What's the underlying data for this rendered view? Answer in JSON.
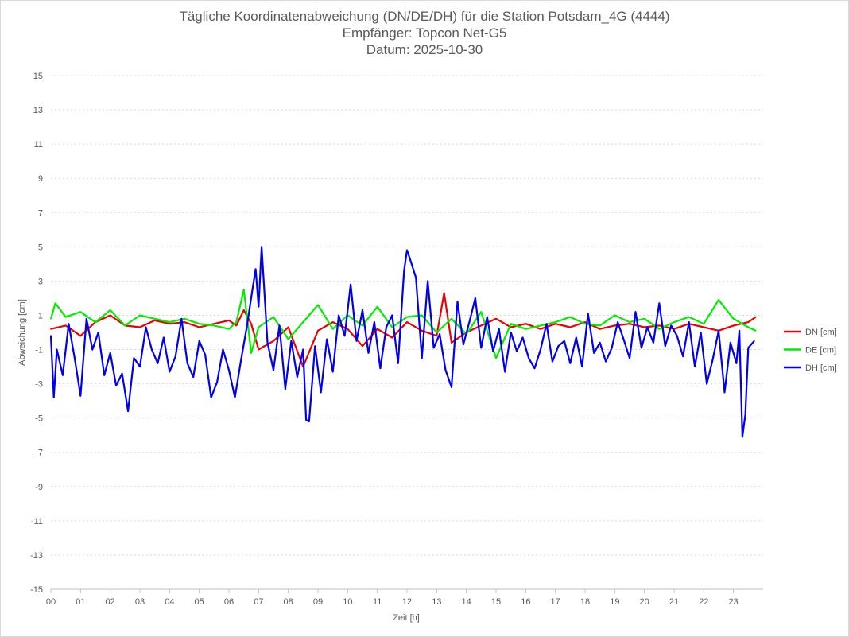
{
  "chart_data": {
    "type": "line",
    "title": "Tägliche Koordinatenabweichung (DN/DE/DH) für die Station Potsdam_4G (4444)",
    "subtitle_lines": [
      "Empfänger: Topcon Net-G5",
      "Datum: 2025-10-30"
    ],
    "xlabel": "Zeit [h]",
    "ylabel": "Abweichung [cm]",
    "xlim": [
      0,
      24
    ],
    "ylim": [
      -15,
      15
    ],
    "x_ticks": [
      0,
      1,
      2,
      3,
      4,
      5,
      6,
      7,
      8,
      9,
      10,
      11,
      12,
      13,
      14,
      15,
      16,
      17,
      18,
      19,
      20,
      21,
      22,
      23
    ],
    "x_tick_labels": [
      "00",
      "01",
      "02",
      "03",
      "04",
      "05",
      "06",
      "07",
      "08",
      "09",
      "10",
      "11",
      "12",
      "13",
      "14",
      "15",
      "16",
      "17",
      "18",
      "19",
      "20",
      "21",
      "22",
      "23"
    ],
    "y_ticks": [
      15,
      13,
      11,
      9,
      7,
      5,
      3,
      1,
      -1,
      -3,
      -5,
      -7,
      -9,
      -11,
      -13,
      -15
    ],
    "y_tick_labels": [
      "15",
      "13",
      "11",
      "9",
      "7",
      "5",
      "3",
      "1",
      "-1",
      "-3",
      "-5",
      "-7",
      "-9",
      "-11",
      "-13",
      "-15"
    ],
    "grid": "horizontal-dotted",
    "legend_position": "right",
    "series": [
      {
        "name": "DN [cm]",
        "color": "#ee0000",
        "x": [
          0,
          0.5,
          1,
          1.5,
          2,
          2.5,
          3,
          3.5,
          4,
          4.5,
          5,
          5.5,
          6,
          6.25,
          6.5,
          6.75,
          7,
          7.5,
          8,
          8.5,
          9,
          9.5,
          10,
          10.5,
          11,
          11.5,
          12,
          12.5,
          13,
          13.25,
          13.5,
          14,
          14.5,
          15,
          15.5,
          16,
          16.5,
          17,
          17.5,
          18,
          18.5,
          19,
          19.5,
          20,
          20.5,
          21,
          21.5,
          22,
          22.5,
          23,
          23.5,
          23.75
        ],
        "values": [
          0.2,
          0.4,
          -0.2,
          0.6,
          1.0,
          0.4,
          0.3,
          0.7,
          0.5,
          0.6,
          0.3,
          0.5,
          0.7,
          0.4,
          1.3,
          0.5,
          -1.0,
          -0.5,
          0.3,
          -2.0,
          0.1,
          0.6,
          0.2,
          -0.8,
          0.2,
          -0.3,
          0.6,
          0.1,
          -0.2,
          2.3,
          -0.6,
          0.0,
          0.4,
          0.8,
          0.3,
          0.5,
          0.2,
          0.5,
          0.3,
          0.6,
          0.2,
          0.4,
          0.5,
          0.3,
          0.4,
          0.2,
          0.5,
          0.3,
          0.1,
          0.4,
          0.6,
          0.9
        ]
      },
      {
        "name": "DE [cm]",
        "color": "#00ee00",
        "x": [
          0,
          0.15,
          0.5,
          1,
          1.5,
          2,
          2.5,
          3,
          3.5,
          4,
          4.5,
          5,
          5.5,
          6,
          6.25,
          6.5,
          6.75,
          7,
          7.5,
          8,
          8.5,
          9,
          9.5,
          10,
          10.5,
          11,
          11.5,
          12,
          12.5,
          13,
          13.5,
          14,
          14.5,
          15,
          15.5,
          16,
          16.5,
          17,
          17.5,
          18,
          18.5,
          19,
          19.5,
          20,
          20.5,
          21,
          21.5,
          22,
          22.5,
          23,
          23.5,
          23.75
        ],
        "values": [
          0.8,
          1.7,
          0.9,
          1.2,
          0.6,
          1.3,
          0.4,
          1.0,
          0.8,
          0.6,
          0.8,
          0.5,
          0.4,
          0.2,
          0.6,
          2.5,
          -1.2,
          0.3,
          0.9,
          -0.4,
          0.6,
          1.6,
          0.2,
          1.0,
          0.4,
          1.5,
          0.3,
          0.9,
          1.0,
          0.0,
          0.8,
          -0.1,
          1.2,
          -1.5,
          0.5,
          0.2,
          0.4,
          0.6,
          0.9,
          0.5,
          0.4,
          1.0,
          0.6,
          0.8,
          0.2,
          0.6,
          0.9,
          0.5,
          1.9,
          0.8,
          0.3,
          0.1
        ]
      },
      {
        "name": "DH [cm]",
        "color": "#0000ee",
        "x": [
          0,
          0.1,
          0.2,
          0.4,
          0.6,
          0.8,
          1.0,
          1.2,
          1.4,
          1.6,
          1.8,
          2.0,
          2.2,
          2.4,
          2.6,
          2.8,
          3.0,
          3.2,
          3.4,
          3.6,
          3.8,
          4.0,
          4.2,
          4.4,
          4.6,
          4.8,
          5.0,
          5.2,
          5.4,
          5.6,
          5.8,
          6.0,
          6.2,
          6.4,
          6.6,
          6.8,
          6.9,
          7.0,
          7.1,
          7.3,
          7.5,
          7.7,
          7.9,
          8.1,
          8.3,
          8.5,
          8.6,
          8.7,
          8.9,
          9.1,
          9.3,
          9.5,
          9.7,
          9.9,
          10.1,
          10.3,
          10.5,
          10.7,
          10.9,
          11.1,
          11.3,
          11.5,
          11.7,
          11.9,
          12.0,
          12.1,
          12.3,
          12.5,
          12.7,
          12.9,
          13.1,
          13.3,
          13.5,
          13.7,
          13.9,
          14.1,
          14.3,
          14.5,
          14.7,
          14.9,
          15.1,
          15.3,
          15.5,
          15.7,
          15.9,
          16.1,
          16.3,
          16.5,
          16.7,
          16.9,
          17.1,
          17.3,
          17.5,
          17.7,
          17.9,
          18.1,
          18.3,
          18.5,
          18.7,
          18.9,
          19.1,
          19.3,
          19.5,
          19.7,
          19.9,
          20.1,
          20.3,
          20.5,
          20.7,
          20.9,
          21.1,
          21.3,
          21.5,
          21.7,
          21.9,
          22.1,
          22.3,
          22.5,
          22.7,
          22.9,
          23.1,
          23.2,
          23.3,
          23.4,
          23.5,
          23.7
        ],
        "values": [
          -0.2,
          -3.8,
          -1.0,
          -2.5,
          0.5,
          -1.5,
          -3.7,
          0.8,
          -1.0,
          0.0,
          -2.5,
          -1.2,
          -3.1,
          -2.4,
          -4.6,
          -1.5,
          -2.0,
          0.3,
          -1.0,
          -1.8,
          -0.3,
          -2.3,
          -1.4,
          0.8,
          -1.8,
          -2.6,
          -0.5,
          -1.3,
          -3.8,
          -2.9,
          -1.0,
          -2.2,
          -3.8,
          -1.7,
          0.3,
          2.6,
          3.7,
          1.5,
          5.0,
          -0.6,
          -2.2,
          0.4,
          -3.3,
          -0.5,
          -2.6,
          -1.0,
          -5.1,
          -5.2,
          -0.8,
          -3.5,
          -0.4,
          -2.3,
          1.0,
          -0.2,
          2.8,
          -0.5,
          1.3,
          -1.2,
          0.6,
          -2.1,
          0.3,
          1.0,
          -1.8,
          3.6,
          4.8,
          4.3,
          3.2,
          -1.5,
          3.0,
          -0.9,
          -0.1,
          -2.2,
          -3.2,
          1.8,
          -0.7,
          0.6,
          2.0,
          -0.9,
          0.9,
          -1.1,
          0.2,
          -2.3,
          0.0,
          -1.1,
          -0.3,
          -1.5,
          -2.1,
          -1.0,
          0.5,
          -1.7,
          -0.8,
          -0.5,
          -1.8,
          -0.3,
          -2.0,
          1.1,
          -1.2,
          -0.6,
          -1.7,
          -0.9,
          0.6,
          -0.4,
          -1.5,
          1.2,
          -0.9,
          0.3,
          -0.6,
          1.7,
          -0.8,
          0.4,
          -0.2,
          -1.4,
          0.6,
          -2.0,
          0.0,
          -3.0,
          -1.6,
          0.1,
          -3.5,
          -0.6,
          -1.8,
          0.1,
          -6.1,
          -4.8,
          -0.9,
          -0.5
        ]
      }
    ]
  }
}
